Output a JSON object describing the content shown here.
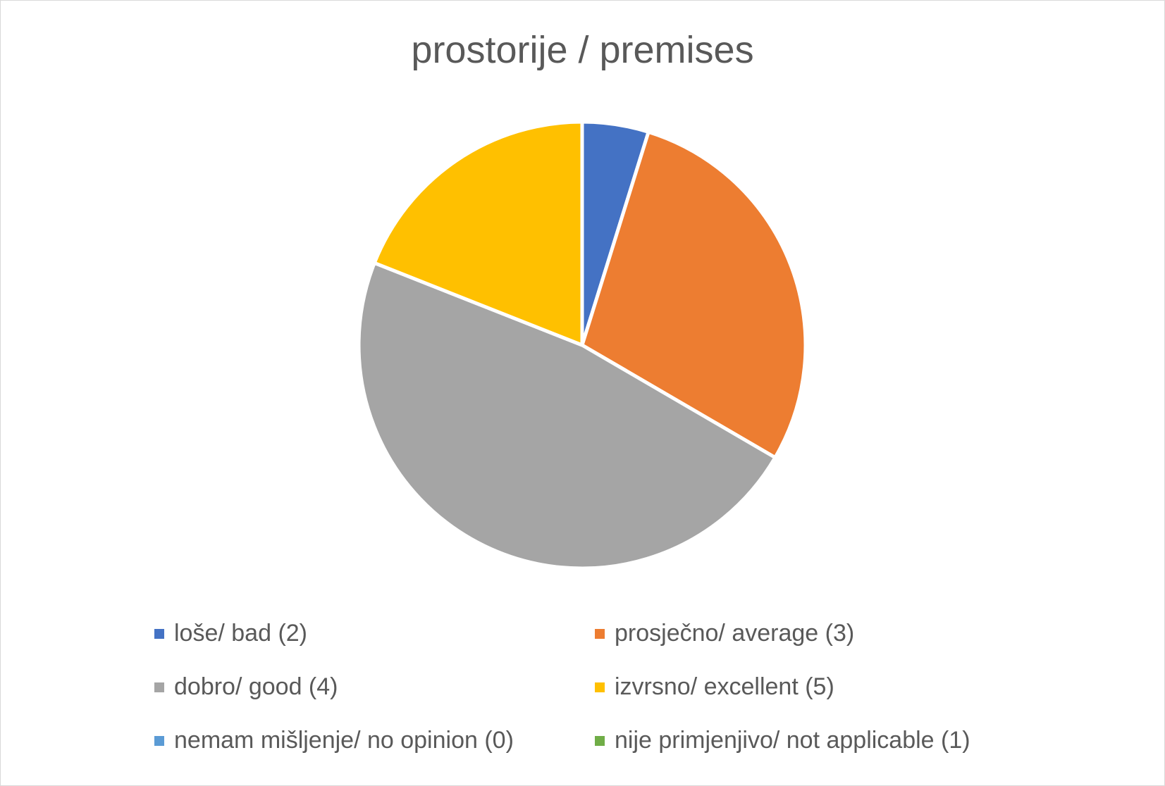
{
  "chart_data": {
    "type": "pie",
    "title": "prostorije / premises",
    "categories": [
      "loše/ bad (2)",
      "prosječno/ average (3)",
      "dobro/ good (4)",
      "izvrsno/ excellent (5)",
      "nemam mišljenje/ no opinion (0)",
      "nije primjenjivo/ not applicable (1)"
    ],
    "values": [
      4.8,
      28.6,
      47.6,
      19.0,
      0,
      0
    ],
    "colors": [
      "#4472c4",
      "#ed7d31",
      "#a5a5a5",
      "#ffc000",
      "#5b9bd5",
      "#70ad47"
    ],
    "legend_position": "bottom"
  }
}
